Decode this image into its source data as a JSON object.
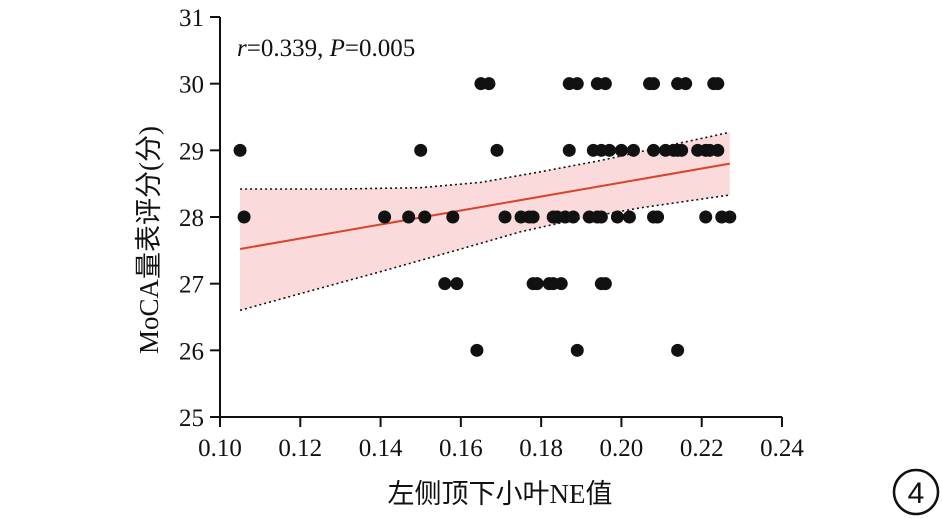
{
  "chart_data": {
    "type": "scatter",
    "xlabel": "左侧顶下小叶NE值",
    "ylabel": "MoCA量表评分(分)",
    "annotation": {
      "r_symbol": "r",
      "r_value": "=0.339, ",
      "p_symbol": "P",
      "p_value": "=0.005"
    },
    "badge": "4",
    "xlim": [
      0.1,
      0.24
    ],
    "ylim": [
      25,
      31
    ],
    "x_ticks": [
      "0.10",
      "0.12",
      "0.14",
      "0.16",
      "0.18",
      "0.20",
      "0.22",
      "0.24"
    ],
    "y_ticks": [
      "25",
      "26",
      "27",
      "28",
      "29",
      "30",
      "31"
    ],
    "grid": false,
    "colors": {
      "points": "#111111",
      "fit_line": "#d9452b",
      "band_fill": "#fadada",
      "band_edge": "#111111"
    },
    "points": [
      {
        "x": 0.105,
        "y": 29
      },
      {
        "x": 0.106,
        "y": 28
      },
      {
        "x": 0.141,
        "y": 28
      },
      {
        "x": 0.147,
        "y": 28
      },
      {
        "x": 0.15,
        "y": 29
      },
      {
        "x": 0.151,
        "y": 28
      },
      {
        "x": 0.156,
        "y": 27
      },
      {
        "x": 0.158,
        "y": 28
      },
      {
        "x": 0.159,
        "y": 27
      },
      {
        "x": 0.164,
        "y": 26
      },
      {
        "x": 0.165,
        "y": 30
      },
      {
        "x": 0.167,
        "y": 30
      },
      {
        "x": 0.169,
        "y": 29
      },
      {
        "x": 0.171,
        "y": 28
      },
      {
        "x": 0.175,
        "y": 28
      },
      {
        "x": 0.177,
        "y": 28
      },
      {
        "x": 0.178,
        "y": 27
      },
      {
        "x": 0.179,
        "y": 27
      },
      {
        "x": 0.178,
        "y": 28
      },
      {
        "x": 0.182,
        "y": 27
      },
      {
        "x": 0.183,
        "y": 27
      },
      {
        "x": 0.183,
        "y": 28
      },
      {
        "x": 0.184,
        "y": 28
      },
      {
        "x": 0.185,
        "y": 27
      },
      {
        "x": 0.186,
        "y": 28
      },
      {
        "x": 0.187,
        "y": 29
      },
      {
        "x": 0.187,
        "y": 30
      },
      {
        "x": 0.188,
        "y": 28
      },
      {
        "x": 0.189,
        "y": 30
      },
      {
        "x": 0.189,
        "y": 26
      },
      {
        "x": 0.192,
        "y": 28
      },
      {
        "x": 0.193,
        "y": 29
      },
      {
        "x": 0.194,
        "y": 28
      },
      {
        "x": 0.194,
        "y": 30
      },
      {
        "x": 0.195,
        "y": 29
      },
      {
        "x": 0.195,
        "y": 28
      },
      {
        "x": 0.195,
        "y": 27
      },
      {
        "x": 0.196,
        "y": 30
      },
      {
        "x": 0.196,
        "y": 27
      },
      {
        "x": 0.197,
        "y": 29
      },
      {
        "x": 0.199,
        "y": 28
      },
      {
        "x": 0.2,
        "y": 29
      },
      {
        "x": 0.202,
        "y": 28
      },
      {
        "x": 0.203,
        "y": 29
      },
      {
        "x": 0.207,
        "y": 30
      },
      {
        "x": 0.208,
        "y": 30
      },
      {
        "x": 0.208,
        "y": 29
      },
      {
        "x": 0.208,
        "y": 28
      },
      {
        "x": 0.209,
        "y": 28
      },
      {
        "x": 0.211,
        "y": 29
      },
      {
        "x": 0.213,
        "y": 29
      },
      {
        "x": 0.214,
        "y": 29
      },
      {
        "x": 0.214,
        "y": 30
      },
      {
        "x": 0.214,
        "y": 26
      },
      {
        "x": 0.215,
        "y": 29
      },
      {
        "x": 0.216,
        "y": 30
      },
      {
        "x": 0.219,
        "y": 29
      },
      {
        "x": 0.221,
        "y": 28
      },
      {
        "x": 0.221,
        "y": 29
      },
      {
        "x": 0.222,
        "y": 29
      },
      {
        "x": 0.223,
        "y": 30
      },
      {
        "x": 0.224,
        "y": 30
      },
      {
        "x": 0.224,
        "y": 29
      },
      {
        "x": 0.225,
        "y": 28
      },
      {
        "x": 0.227,
        "y": 28
      }
    ],
    "fit_line": [
      {
        "x": 0.105,
        "y": 27.52
      },
      {
        "x": 0.227,
        "y": 28.8
      }
    ],
    "confidence_band": {
      "upper": [
        {
          "x": 0.105,
          "y": 28.42
        },
        {
          "x": 0.13,
          "y": 28.42
        },
        {
          "x": 0.15,
          "y": 28.44
        },
        {
          "x": 0.165,
          "y": 28.52
        },
        {
          "x": 0.18,
          "y": 28.68
        },
        {
          "x": 0.195,
          "y": 28.85
        },
        {
          "x": 0.21,
          "y": 29.05
        },
        {
          "x": 0.227,
          "y": 29.27
        }
      ],
      "lower": [
        {
          "x": 0.105,
          "y": 26.6
        },
        {
          "x": 0.12,
          "y": 26.85
        },
        {
          "x": 0.14,
          "y": 27.18
        },
        {
          "x": 0.16,
          "y": 27.52
        },
        {
          "x": 0.175,
          "y": 27.78
        },
        {
          "x": 0.19,
          "y": 27.98
        },
        {
          "x": 0.205,
          "y": 28.14
        },
        {
          "x": 0.227,
          "y": 28.33
        }
      ]
    }
  }
}
